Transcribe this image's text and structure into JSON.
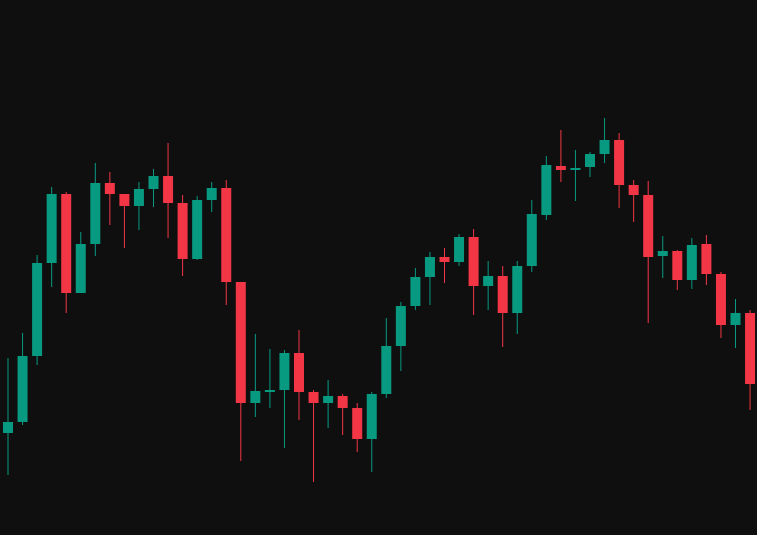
{
  "chart_data": {
    "type": "candlestick",
    "up_color": "#089981",
    "down_color": "#f23645",
    "background": "#0f0f0f",
    "ylim": [
      0,
      535
    ],
    "open": [
      102,
      113,
      179,
      272,
      341,
      242,
      291,
      352,
      341,
      329,
      346,
      359,
      332,
      276,
      335,
      347,
      253,
      132,
      143,
      145,
      182,
      143,
      132,
      139,
      127,
      96,
      141,
      189,
      229,
      258,
      278,
      273,
      298,
      249,
      259,
      222,
      269,
      320,
      369,
      365,
      368,
      381,
      395,
      350,
      340,
      279,
      284,
      255,
      291,
      261,
      210,
      222
    ],
    "high": [
      177,
      202,
      280,
      348,
      343,
      303,
      372,
      363,
      341,
      353,
      366,
      392,
      340,
      339,
      353,
      355,
      253,
      201,
      186,
      185,
      205,
      145,
      155,
      141,
      132,
      143,
      217,
      233,
      267,
      283,
      287,
      301,
      306,
      274,
      269,
      274,
      335,
      379,
      405,
      385,
      383,
      417,
      402,
      355,
      354,
      299,
      285,
      297,
      300,
      263,
      236,
      225
    ],
    "low": [
      60,
      110,
      170,
      248,
      222,
      242,
      279,
      310,
      287,
      305,
      328,
      297,
      259,
      275,
      323,
      230,
      74,
      118,
      127,
      87,
      115,
      53,
      107,
      100,
      83,
      63,
      137,
      164,
      225,
      230,
      252,
      269,
      220,
      225,
      188,
      201,
      263,
      315,
      353,
      334,
      358,
      372,
      327,
      313,
      212,
      257,
      245,
      246,
      250,
      197,
      187,
      125
    ],
    "close": [
      113,
      179,
      272,
      341,
      242,
      291,
      352,
      341,
      329,
      346,
      359,
      332,
      276,
      335,
      347,
      253,
      132,
      144,
      145,
      182,
      143,
      132,
      139,
      127,
      96,
      141,
      189,
      229,
      258,
      278,
      273,
      298,
      249,
      259,
      222,
      269,
      321,
      370,
      365,
      367,
      381,
      395,
      350,
      340,
      278,
      284,
      255,
      290,
      261,
      210,
      222,
      151
    ]
  }
}
